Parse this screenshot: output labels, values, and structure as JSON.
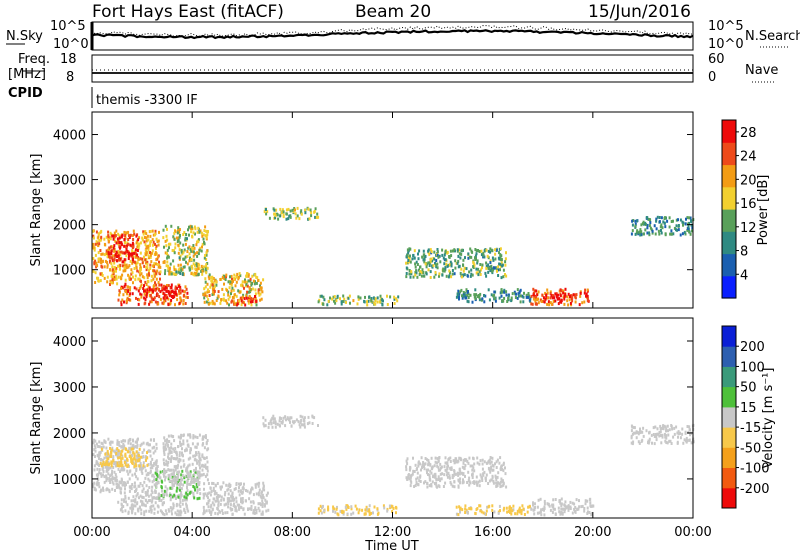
{
  "header": {
    "title": "Fort Hays East (fitACF)",
    "beam": "Beam 20",
    "date": "15/Jun/2016"
  },
  "top_panels": {
    "nsky_label": "N.Sky",
    "nsky_ticks": [
      "10^5",
      "10^0"
    ],
    "nsearch_label": "N.Search",
    "nsearch_ticks": [
      "10^5",
      "10^0"
    ],
    "freq_label": "Freq.",
    "freq_unit": "[MHz]",
    "freq_ticks": [
      "18",
      "8"
    ],
    "nave_label": "Nave",
    "nave_ticks": [
      "60",
      "0"
    ],
    "cpid_label": "CPID",
    "cpid_text": "themis -3300 IF"
  },
  "colors": {
    "power": [
      "#0a1fff",
      "#1a5fb0",
      "#2f8a82",
      "#59a05a",
      "#f2d030",
      "#f39c14",
      "#ee4a1a",
      "#ee0a0a"
    ],
    "velocity": [
      "#ee0a0a",
      "#f25a10",
      "#f4a01b",
      "#f7c84a",
      "#c8c8c8",
      "#4ec03a",
      "#3a9a7a",
      "#2d5fb0",
      "#0a1fd6"
    ],
    "ground_scatter": "#c8c8c8"
  },
  "chart_data": [
    {
      "type": "heatmap",
      "name": "power",
      "x_unit": "hours UT",
      "xlim": [
        0,
        24
      ],
      "ylim": [
        150,
        4500
      ],
      "ylabel": "Slant Range [km]",
      "yticks": [
        "1000",
        "2000",
        "3000",
        "4000"
      ],
      "ytick_values": [
        1000,
        2000,
        3000,
        4000
      ],
      "colorbar_label": "Power [dB]",
      "colorbar_ticks": [
        "4",
        "8",
        "12",
        "16",
        "20",
        "24",
        "28"
      ],
      "colorbar_range": [
        0,
        30
      ],
      "regions": [
        {
          "x": [
            0.0,
            2.7
          ],
          "y": [
            700,
            1900
          ],
          "value": 20
        },
        {
          "x": [
            0.6,
            1.8
          ],
          "y": [
            1200,
            1800
          ],
          "value": 28
        },
        {
          "x": [
            1.0,
            3.8
          ],
          "y": [
            250,
            700
          ],
          "value": 24
        },
        {
          "x": [
            2.0,
            3.5
          ],
          "y": [
            400,
            650
          ],
          "value": 30
        },
        {
          "x": [
            2.8,
            4.6
          ],
          "y": [
            900,
            2000
          ],
          "value": 16
        },
        {
          "x": [
            4.4,
            6.8
          ],
          "y": [
            250,
            950
          ],
          "value": 18
        },
        {
          "x": [
            5.5,
            6.6
          ],
          "y": [
            250,
            450
          ],
          "value": 26
        },
        {
          "x": [
            6.8,
            9.0
          ],
          "y": [
            2150,
            2400
          ],
          "value": 14
        },
        {
          "x": [
            9.0,
            12.2
          ],
          "y": [
            250,
            450
          ],
          "value": 14
        },
        {
          "x": [
            12.5,
            16.5
          ],
          "y": [
            850,
            1500
          ],
          "value": 12
        },
        {
          "x": [
            14.5,
            17.5
          ],
          "y": [
            300,
            600
          ],
          "value": 10
        },
        {
          "x": [
            17.5,
            19.8
          ],
          "y": [
            250,
            600
          ],
          "value": 24
        },
        {
          "x": [
            18.0,
            19.2
          ],
          "y": [
            300,
            500
          ],
          "value": 30
        },
        {
          "x": [
            21.5,
            24.0
          ],
          "y": [
            1800,
            2200
          ],
          "value": 10
        }
      ]
    },
    {
      "type": "heatmap",
      "name": "velocity",
      "x_unit": "hours UT",
      "xlim": [
        0,
        24
      ],
      "ylim": [
        150,
        4500
      ],
      "ylabel": "Slant Range [km]",
      "yticks": [
        "1000",
        "2000",
        "3000",
        "4000"
      ],
      "ytick_values": [
        1000,
        2000,
        3000,
        4000
      ],
      "xticks": [
        "00:00",
        "04:00",
        "08:00",
        "12:00",
        "16:00",
        "20:00",
        "00:00"
      ],
      "xtick_values": [
        0,
        4,
        8,
        12,
        16,
        20,
        24
      ],
      "xlabel": "Time UT",
      "colorbar_label": "Velocity [m s⁻¹]",
      "colorbar_ticks": [
        "-200",
        "-100",
        "-50",
        "-15",
        "15",
        "50",
        "100",
        "200"
      ],
      "colorbar_range": [
        -250,
        250
      ],
      "regions": [
        {
          "x": [
            0.0,
            2.6
          ],
          "y": [
            700,
            1900
          ],
          "value": 0
        },
        {
          "x": [
            0.3,
            2.2
          ],
          "y": [
            1300,
            1700
          ],
          "value": -60
        },
        {
          "x": [
            1.0,
            3.8
          ],
          "y": [
            250,
            700
          ],
          "value": 0
        },
        {
          "x": [
            2.5,
            4.3
          ],
          "y": [
            600,
            1200
          ],
          "value": 25
        },
        {
          "x": [
            2.8,
            4.6
          ],
          "y": [
            900,
            2000
          ],
          "value": 0
        },
        {
          "x": [
            4.4,
            7.0
          ],
          "y": [
            250,
            950
          ],
          "value": 0
        },
        {
          "x": [
            6.8,
            9.0
          ],
          "y": [
            2150,
            2400
          ],
          "value": 0
        },
        {
          "x": [
            9.0,
            12.2
          ],
          "y": [
            250,
            450
          ],
          "value": -40
        },
        {
          "x": [
            12.5,
            16.5
          ],
          "y": [
            850,
            1500
          ],
          "value": 0
        },
        {
          "x": [
            14.5,
            17.5
          ],
          "y": [
            250,
            450
          ],
          "value": -40
        },
        {
          "x": [
            17.5,
            20.0
          ],
          "y": [
            250,
            600
          ],
          "value": 0
        },
        {
          "x": [
            21.5,
            24.0
          ],
          "y": [
            1800,
            2200
          ],
          "value": 0
        }
      ]
    }
  ]
}
